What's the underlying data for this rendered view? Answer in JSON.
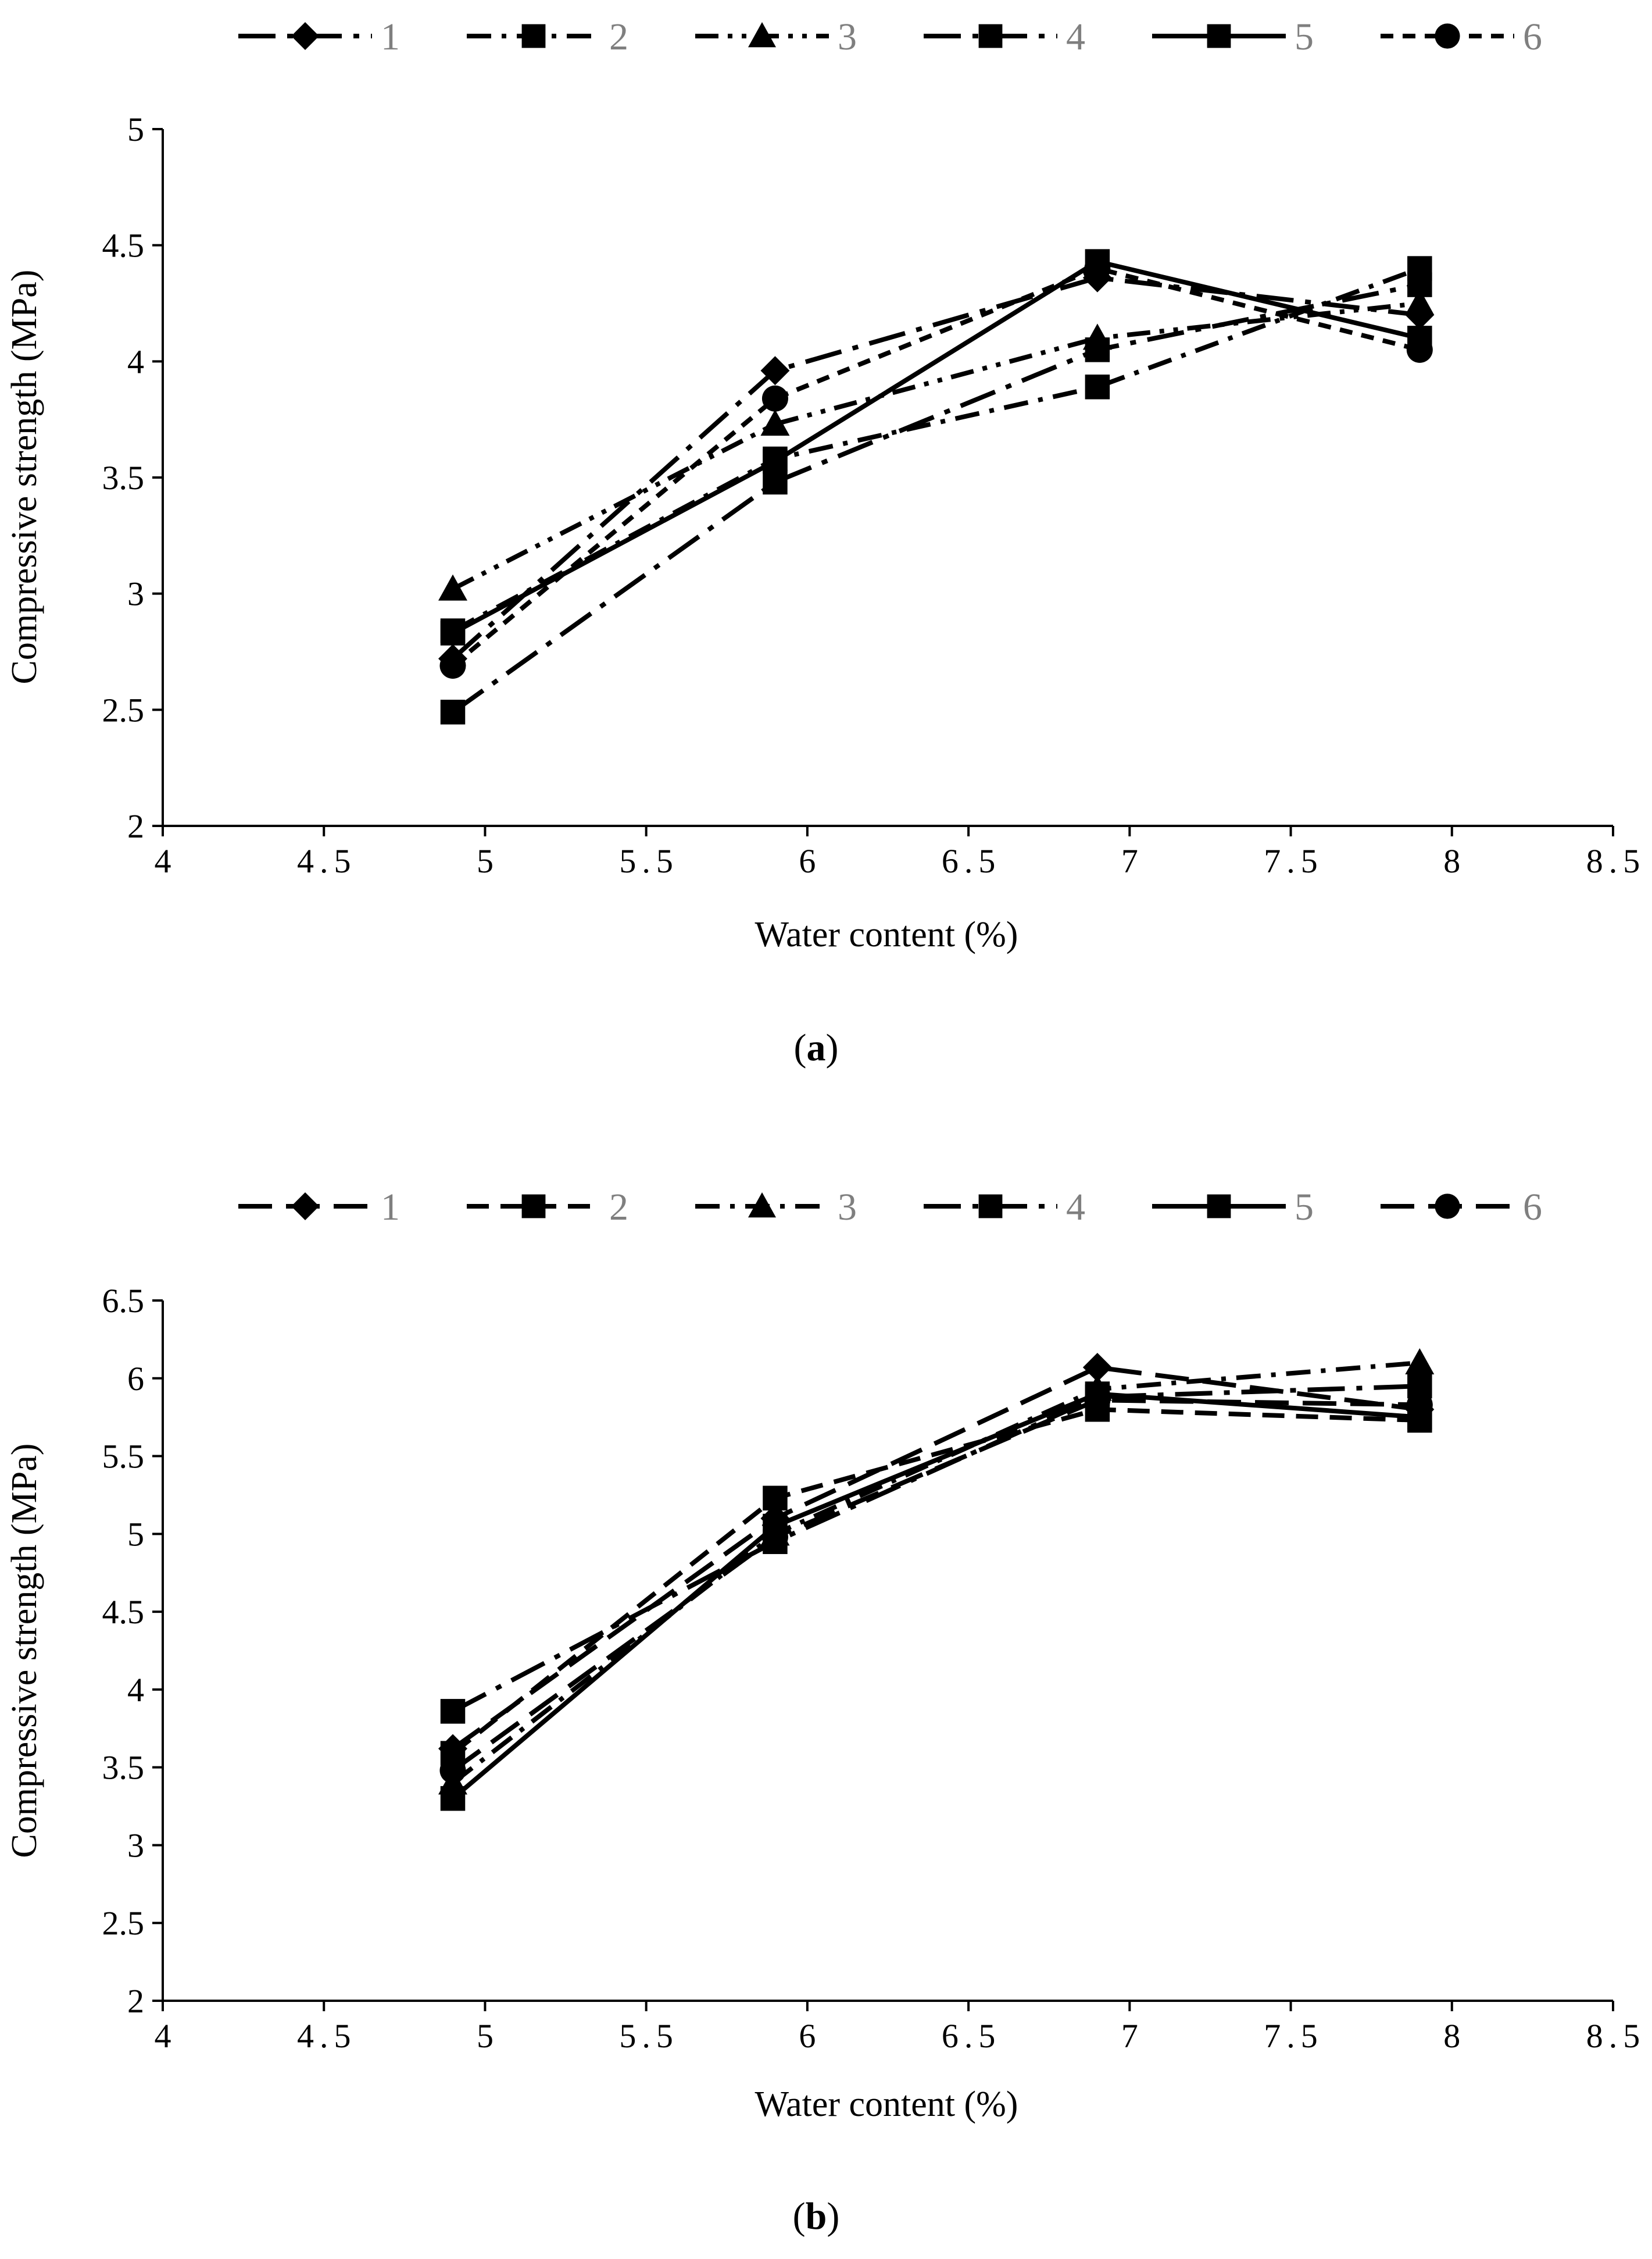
{
  "chart_data": [
    {
      "type": "line",
      "caption_letter": "a",
      "caption_before": "(",
      "caption_after": ")",
      "xlabel": "Water content (%)",
      "ylabel": "Compressive strength  (MPa)",
      "xlim": [
        4,
        8.5
      ],
      "ylim": [
        2,
        5
      ],
      "xticks": [
        4,
        4.5,
        5,
        5.5,
        6,
        6.5,
        7,
        7.5,
        8,
        8.5
      ],
      "xtick_labels": [
        "4",
        "4.5",
        "5",
        "5.5",
        "6",
        "6.5",
        "7",
        "7.5",
        "8",
        "8.5"
      ],
      "yticks": [
        2,
        2.5,
        3,
        3.5,
        4,
        4.5,
        5
      ],
      "ytick_labels": [
        "2",
        "2.5",
        "3",
        "3.5",
        "4",
        "4.5",
        "5"
      ],
      "x": [
        4.9,
        5.9,
        6.9,
        7.9
      ],
      "series": [
        {
          "name": "1",
          "marker": "diamond",
          "dash": "long-dash-dot",
          "values": [
            2.72,
            3.96,
            4.36,
            4.2
          ]
        },
        {
          "name": "2",
          "marker": "square",
          "dash": "dash-dot",
          "values": [
            2.84,
            3.58,
            3.89,
            4.4
          ]
        },
        {
          "name": "3",
          "marker": "triangle",
          "dash": "dash-dot-dot",
          "values": [
            3.02,
            3.73,
            4.1,
            4.25
          ]
        },
        {
          "name": "4",
          "marker": "square",
          "dash": "long-dash-dot",
          "values": [
            2.49,
            3.48,
            4.05,
            4.33
          ]
        },
        {
          "name": "5",
          "marker": "square",
          "dash": "solid",
          "values": [
            2.83,
            3.57,
            4.43,
            4.1
          ]
        },
        {
          "name": "6",
          "marker": "circle",
          "dash": "short-dash",
          "values": [
            2.69,
            3.84,
            4.4,
            4.05
          ]
        }
      ]
    },
    {
      "type": "line",
      "caption_letter": "b",
      "caption_before": "(",
      "caption_after": ")",
      "xlabel": "Water content (%)",
      "ylabel": "Compressive strength (MPa)",
      "xlim": [
        4,
        8.5
      ],
      "ylim": [
        2,
        6.5
      ],
      "xticks": [
        4,
        4.5,
        5,
        5.5,
        6,
        6.5,
        7,
        7.5,
        8,
        8.5
      ],
      "xtick_labels": [
        "4",
        "4.5",
        "5",
        "5.5",
        "6",
        "6.5",
        "7",
        "7.5",
        "8",
        "8.5"
      ],
      "yticks": [
        2,
        2.5,
        3,
        3.5,
        4,
        4.5,
        5,
        5.5,
        6,
        6.5
      ],
      "ytick_labels": [
        "2",
        "2.5",
        "3",
        "3.5",
        "4",
        "4.5",
        "5",
        "5.5",
        "6",
        "6.5"
      ],
      "x": [
        4.9,
        5.9,
        6.9,
        7.9
      ],
      "series": [
        {
          "name": "1",
          "marker": "diamond",
          "dash": "long-dash",
          "values": [
            3.62,
            5.1,
            6.07,
            5.8
          ]
        },
        {
          "name": "2",
          "marker": "square",
          "dash": "dash",
          "values": [
            3.59,
            5.23,
            5.8,
            5.73
          ]
        },
        {
          "name": "3",
          "marker": "triangle",
          "dash": "dash-dot",
          "values": [
            3.4,
            5.0,
            5.93,
            6.1
          ]
        },
        {
          "name": "4",
          "marker": "square",
          "dash": "long-dash-dot",
          "values": [
            3.86,
            4.95,
            5.88,
            5.95
          ]
        },
        {
          "name": "5",
          "marker": "square",
          "dash": "solid",
          "values": [
            3.3,
            5.05,
            5.9,
            5.75
          ]
        },
        {
          "name": "6",
          "marker": "circle",
          "dash": "long-dash",
          "values": [
            3.48,
            4.98,
            5.86,
            5.83
          ]
        }
      ]
    }
  ]
}
